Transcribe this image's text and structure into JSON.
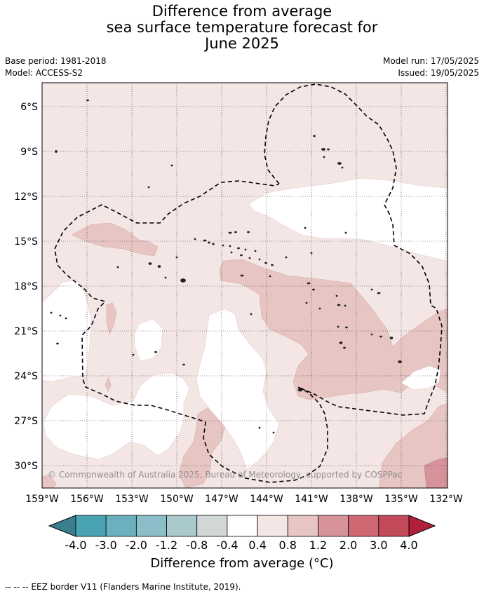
{
  "title": {
    "line1": "Difference from average",
    "line2": "sea surface temperature forecast for",
    "line3": "June 2025"
  },
  "meta": {
    "base_period": "Base period: 1981-2018",
    "model": "Model: ACCESS-S2",
    "model_run": "Model run: 17/05/2025",
    "issued": "Issued: 19/05/2025"
  },
  "map": {
    "lat_labels": [
      "6°S",
      "9°S",
      "12°S",
      "15°S",
      "18°S",
      "21°S",
      "24°S",
      "27°S",
      "30°S"
    ],
    "lon_labels": [
      "159°W",
      "156°W",
      "153°W",
      "150°W",
      "147°W",
      "144°W",
      "141°W",
      "138°W",
      "135°W",
      "132°W"
    ],
    "copyright": "© Commonwealth of Australia 2025, Bureau of Meteorology, supported by COSPPac",
    "colors": {
      "white": "#ffffff",
      "light_pink": "#f4e6e5",
      "pink": "#e6c5c2",
      "mid_pink": "#d6939a",
      "eez_line": "#000000"
    }
  },
  "colorbar": {
    "labels": [
      "-4.0",
      "-3.0",
      "-2.0",
      "-1.2",
      "-0.8",
      "-0.4",
      "0.4",
      "0.8",
      "1.2",
      "2.0",
      "3.0",
      "4.0"
    ],
    "colors": [
      "#3b7f8e",
      "#4aa3b3",
      "#6bb0bf",
      "#8dbdc8",
      "#a9c9cd",
      "#d1d6d6",
      "#ffffff",
      "#f4e6e5",
      "#e6c5c2",
      "#d6939a",
      "#cf6872",
      "#c24a5a",
      "#b0203b"
    ],
    "title": "Difference from average (°C)"
  },
  "footer": "--  --  -- EEZ border V11 (Flanders Marine Institute, 2019)."
}
